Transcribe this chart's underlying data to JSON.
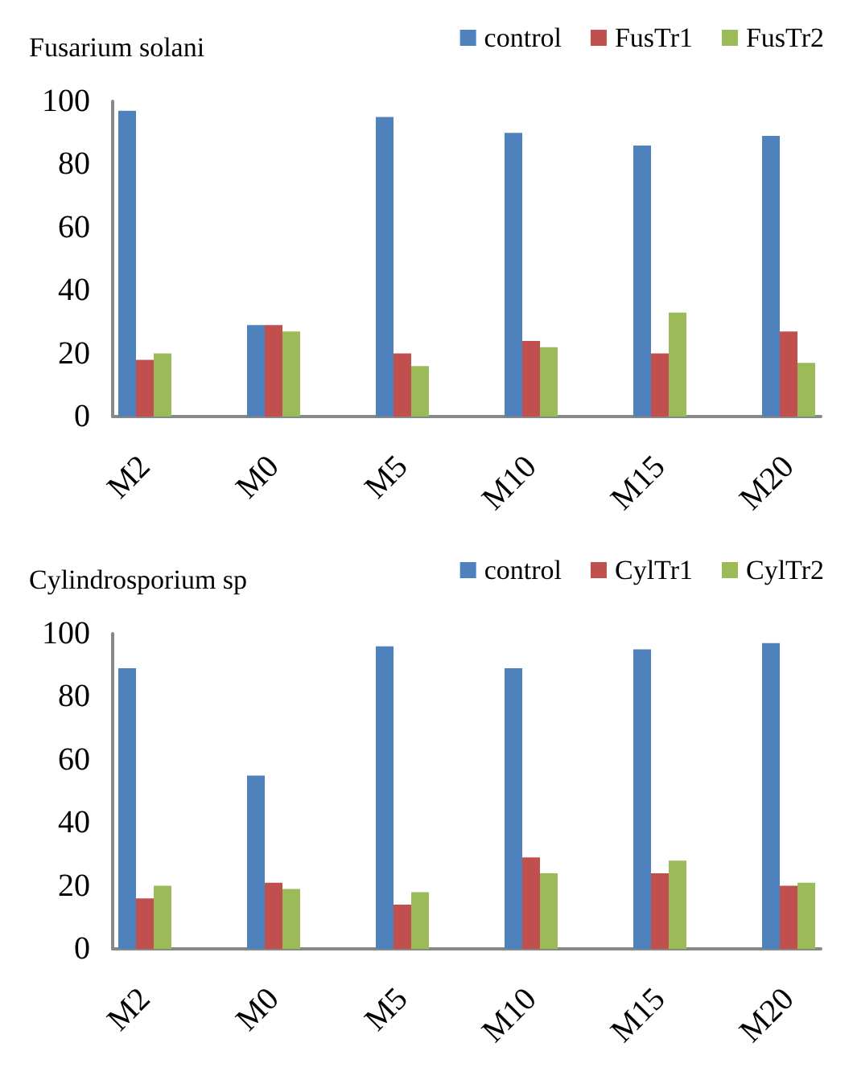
{
  "chart_data": [
    {
      "type": "bar",
      "title": "Fusarium solani",
      "categories": [
        "M2",
        null,
        "M0",
        null,
        "M5",
        null,
        "M10",
        null,
        "M15",
        null,
        "M20"
      ],
      "series": [
        {
          "name": "control",
          "color": "#4f81bd",
          "values": [
            97,
            0,
            29,
            0,
            95,
            0,
            90,
            0,
            86,
            0,
            89
          ]
        },
        {
          "name": "FusTr1",
          "color": "#c0504d",
          "values": [
            18,
            0,
            29,
            0,
            20,
            0,
            24,
            0,
            20,
            0,
            27
          ]
        },
        {
          "name": "FusTr2",
          "color": "#9bbb59",
          "values": [
            20,
            0,
            27,
            0,
            16,
            0,
            22,
            0,
            33,
            0,
            17
          ]
        }
      ],
      "ylim": [
        0,
        100
      ],
      "yticks": [
        0,
        20,
        40,
        60,
        80,
        100
      ],
      "grid": false,
      "legend": "top right"
    },
    {
      "type": "bar",
      "title": "Cylindrosporium sp",
      "categories": [
        "M2",
        null,
        "M0",
        null,
        "M5",
        null,
        "M10",
        null,
        "M15",
        null,
        "M20"
      ],
      "series": [
        {
          "name": "control",
          "color": "#4f81bd",
          "values": [
            89,
            0,
            55,
            0,
            96,
            0,
            89,
            0,
            95,
            0,
            97
          ]
        },
        {
          "name": "CylTr1",
          "color": "#c0504d",
          "values": [
            16,
            0,
            21,
            0,
            14,
            0,
            29,
            0,
            24,
            0,
            20
          ]
        },
        {
          "name": "CylTr2",
          "color": "#9bbb59",
          "values": [
            20,
            0,
            19,
            0,
            18,
            0,
            24,
            0,
            28,
            0,
            21
          ]
        }
      ],
      "ylim": [
        0,
        100
      ],
      "yticks": [
        0,
        20,
        40,
        60,
        80,
        100
      ],
      "grid": false,
      "legend": "top right"
    }
  ]
}
